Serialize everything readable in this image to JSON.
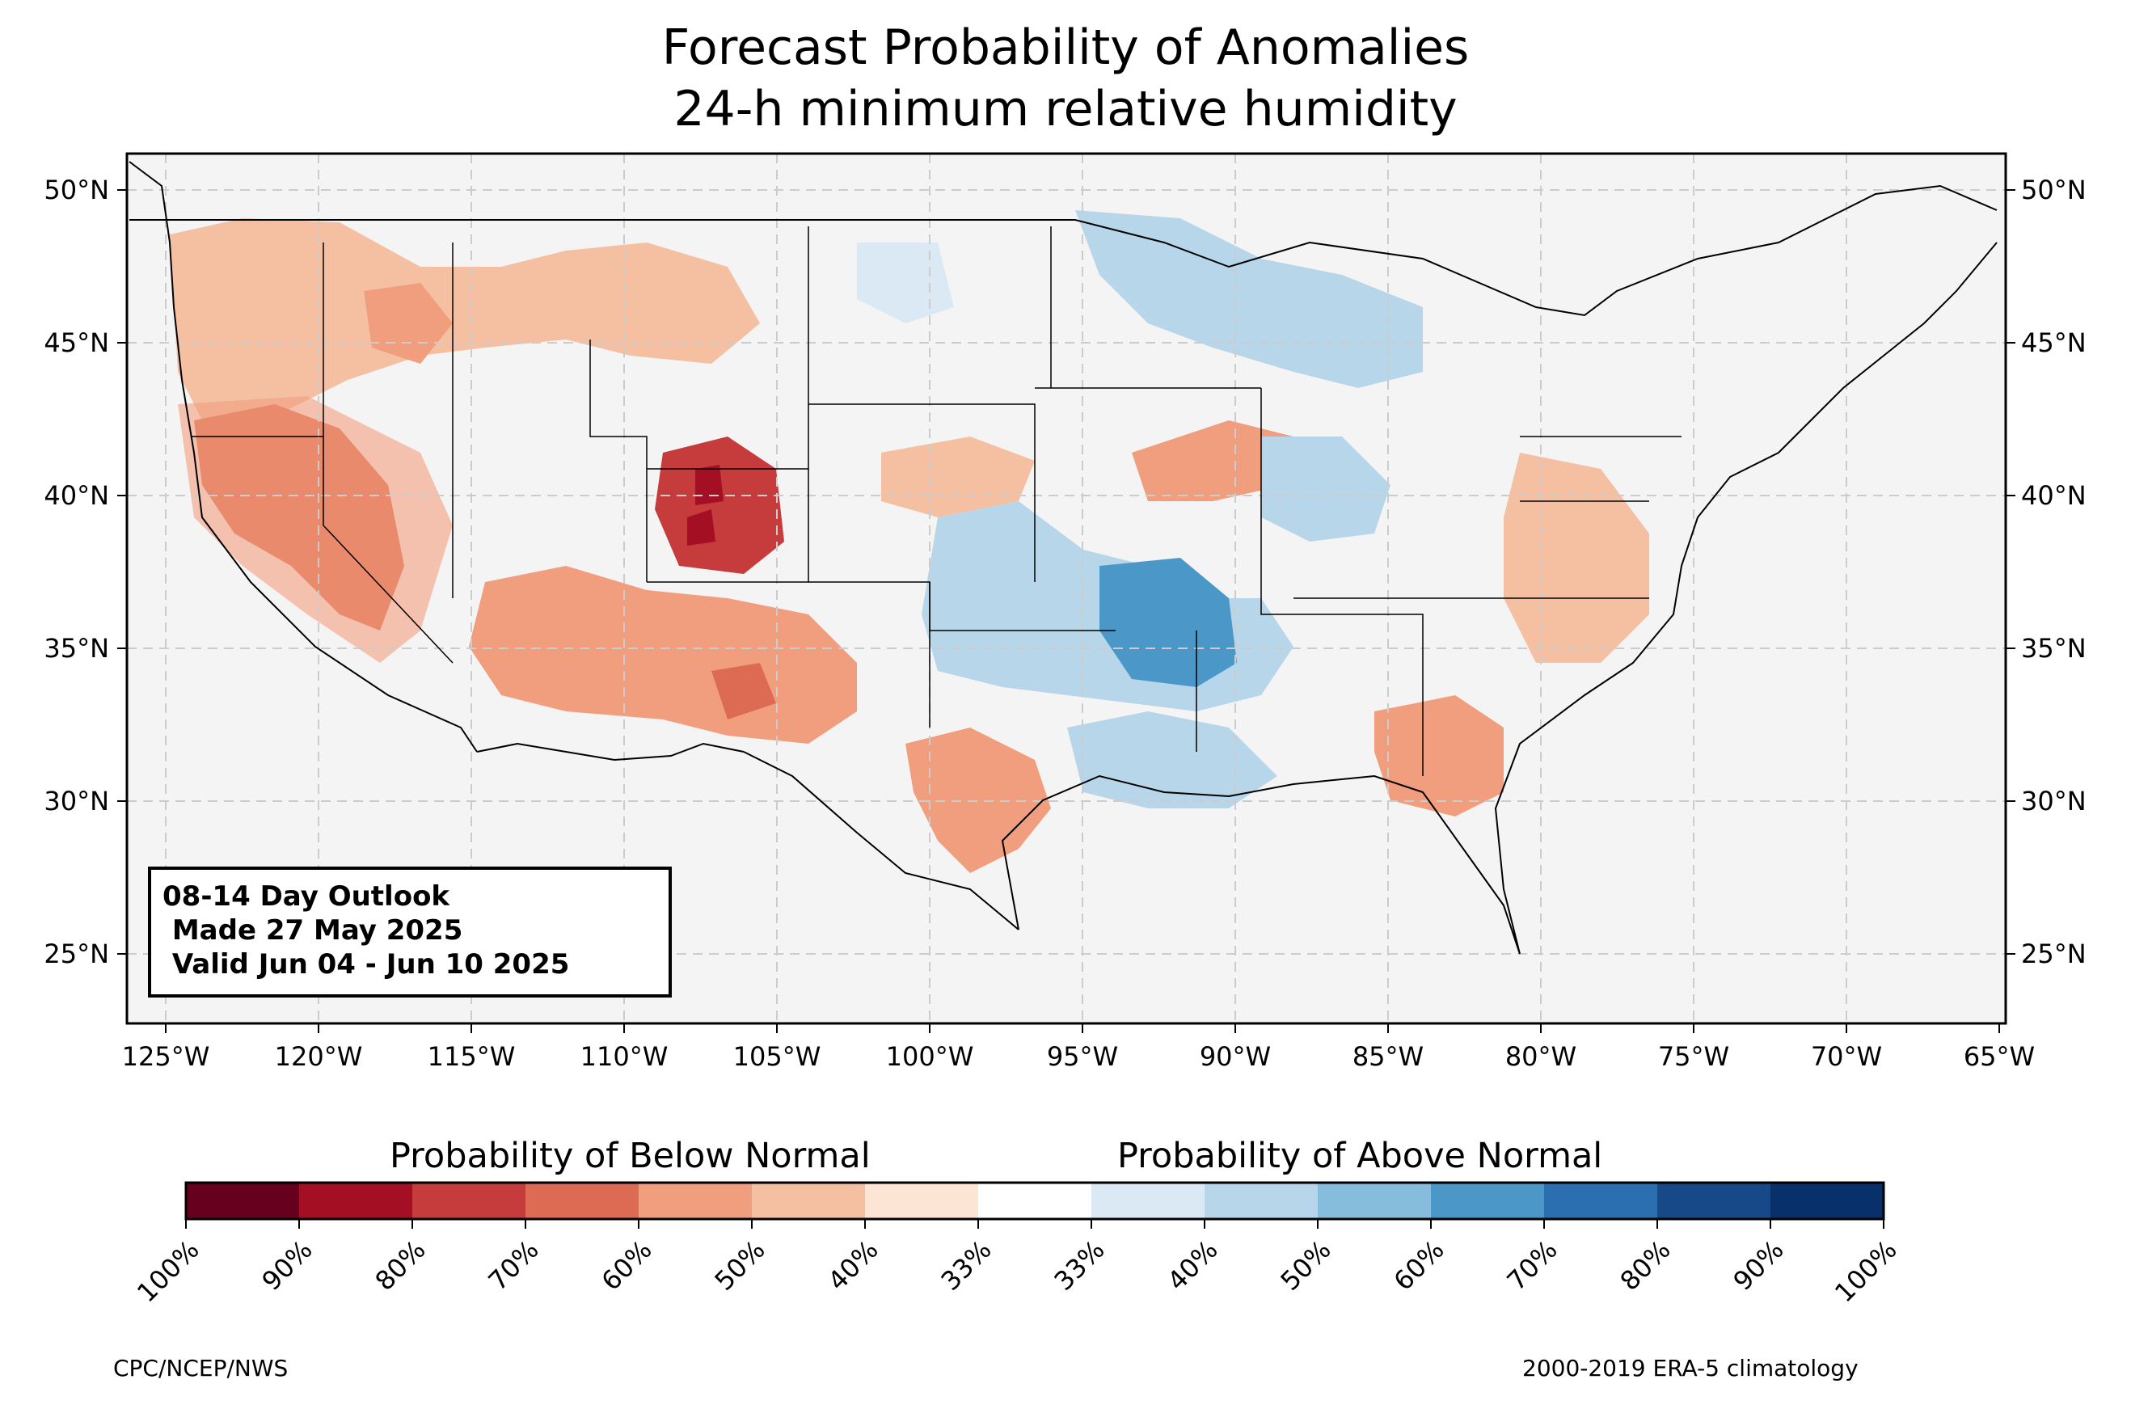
{
  "title": {
    "line1": "Forecast Probability of Anomalies",
    "line2": "24-h minimum relative humidity"
  },
  "outlook_box": {
    "line1": "08-14 Day Outlook",
    "line2": " Made 27 May 2025",
    "line3": " Valid Jun 04 - Jun 10 2025"
  },
  "axes": {
    "lon_ticks": [
      "125°W",
      "120°W",
      "115°W",
      "110°W",
      "105°W",
      "100°W",
      "95°W",
      "90°W",
      "85°W",
      "80°W",
      "75°W",
      "70°W",
      "65°W"
    ],
    "lat_ticks": [
      "50°N",
      "45°N",
      "40°N",
      "35°N",
      "30°N",
      "25°N"
    ]
  },
  "colorbar": {
    "below_label": "Probability of Below Normal",
    "above_label": "Probability of Above Normal",
    "tick_labels": [
      "100%",
      "90%",
      "80%",
      "70%",
      "60%",
      "50%",
      "40%",
      "33%",
      "33%",
      "40%",
      "50%",
      "60%",
      "70%",
      "80%",
      "90%",
      "100%"
    ],
    "colors": [
      "#67001f",
      "#a50f24",
      "#c63b3b",
      "#dd6b54",
      "#f19e7e",
      "#f5bfa2",
      "#fde5d6",
      "#ffffff",
      "#dbe9f5",
      "#b8d6ea",
      "#86bcdc",
      "#4b97c8",
      "#2b6fb1",
      "#174888",
      "#08306b"
    ]
  },
  "footer": {
    "left": "CPC/NCEP/NWS",
    "right": "2000-2019 ERA-5 climatology"
  },
  "map_regions": [
    {
      "name": "below-northwest",
      "color": "#f5bfa2"
    },
    {
      "name": "below-california-nevada",
      "color": "#dd6b54"
    },
    {
      "name": "below-colorado",
      "color": "#c63b3b"
    },
    {
      "name": "below-southwest",
      "color": "#f19e7e"
    },
    {
      "name": "below-texas",
      "color": "#f19e7e"
    },
    {
      "name": "above-southern-plains",
      "color": "#86bcdc"
    },
    {
      "name": "above-arkansas",
      "color": "#4b97c8"
    },
    {
      "name": "above-great-lakes",
      "color": "#b8d6ea"
    },
    {
      "name": "below-southeast",
      "color": "#f5bfa2"
    }
  ]
}
